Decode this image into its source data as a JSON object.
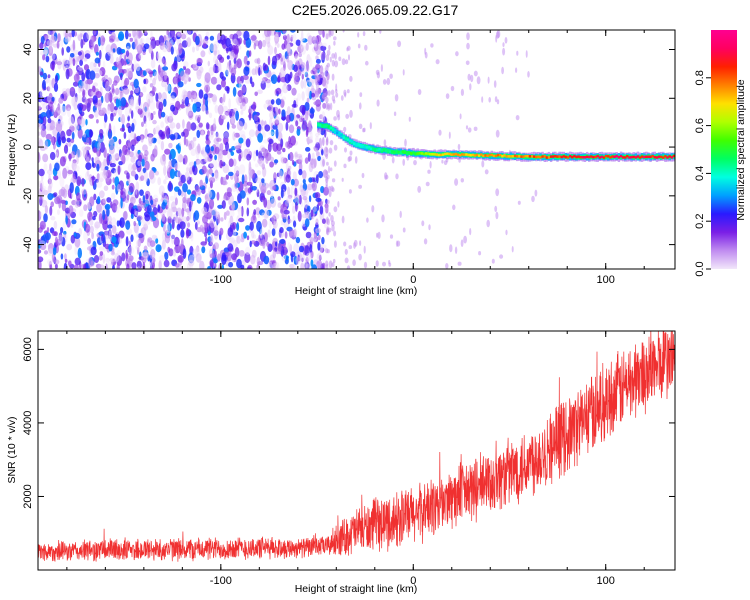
{
  "title": "C2E5.2026.065.09.22.G17",
  "chart_data": [
    {
      "type": "heatmap",
      "xlabel": "Height of straight line (km)",
      "ylabel": "Frequency (Hz)",
      "xlim": [
        -195,
        136
      ],
      "ylim": [
        -50,
        48
      ],
      "x_ticks": [
        -100,
        0,
        100
      ],
      "y_ticks": [
        -40,
        -20,
        0,
        20,
        40
      ],
      "colorbar": {
        "label": "Normalized spectral amplitude",
        "range": [
          0,
          1
        ],
        "ticks": [
          "0.0",
          "0.2",
          "0.4",
          "0.6",
          "0.8"
        ],
        "colors": [
          "#f2e6fa",
          "#c08cf0",
          "#7a1fe6",
          "#2a1aff",
          "#00a0ff",
          "#00ffe0",
          "#00ff60",
          "#40ff00",
          "#b0ff00",
          "#ffe000",
          "#ff8000",
          "#ff2000",
          "#ff0060",
          "#ff0090"
        ]
      },
      "noise_region": {
        "x": [
          -195,
          -45
        ],
        "y": [
          -50,
          48
        ]
      },
      "ridge": {
        "x": [
          -50,
          -45,
          -40,
          -35,
          -30,
          -20,
          -10,
          0,
          10,
          20,
          40,
          60,
          80,
          100,
          120,
          136
        ],
        "freq": [
          9,
          8.5,
          6,
          3,
          1,
          -1,
          -2,
          -2.5,
          -3,
          -3,
          -3.5,
          -4,
          -4,
          -4,
          -4,
          -4
        ],
        "amp": [
          0.45,
          0.5,
          0.35,
          0.45,
          0.4,
          0.45,
          0.5,
          0.55,
          0.75,
          0.8,
          0.8,
          0.85,
          0.9,
          0.95,
          0.95,
          0.95
        ]
      }
    },
    {
      "type": "line",
      "xlabel": "Height of straight line (km)",
      "ylabel": "SNR (10 * v/v)",
      "xlim": [
        -195,
        136
      ],
      "ylim": [
        0,
        6500
      ],
      "x_ticks": [
        -100,
        0,
        100
      ],
      "y_ticks": [
        2000,
        4000,
        6000
      ],
      "color": "#f03030",
      "series": [
        {
          "x": [
            -195,
            -180,
            -160,
            -140,
            -120,
            -100,
            -80,
            -60,
            -45,
            -40,
            -30,
            -20,
            -10,
            0,
            10,
            20,
            30,
            40,
            50,
            60,
            70,
            80,
            90,
            100,
            110,
            120,
            130,
            136
          ],
          "mean": [
            500,
            500,
            550,
            550,
            560,
            580,
            600,
            600,
            650,
            800,
            1050,
            1200,
            1350,
            1500,
            1700,
            1950,
            2150,
            2400,
            2650,
            2950,
            3300,
            3700,
            4150,
            4600,
            5000,
            5350,
            5650,
            5800
          ],
          "spread": [
            300,
            300,
            350,
            350,
            350,
            350,
            350,
            300,
            300,
            500,
            700,
            800,
            850,
            900,
            900,
            950,
            1000,
            1000,
            1050,
            1100,
            1150,
            1150,
            1200,
            1200,
            1200,
            1200,
            1200,
            1200
          ]
        }
      ]
    }
  ]
}
